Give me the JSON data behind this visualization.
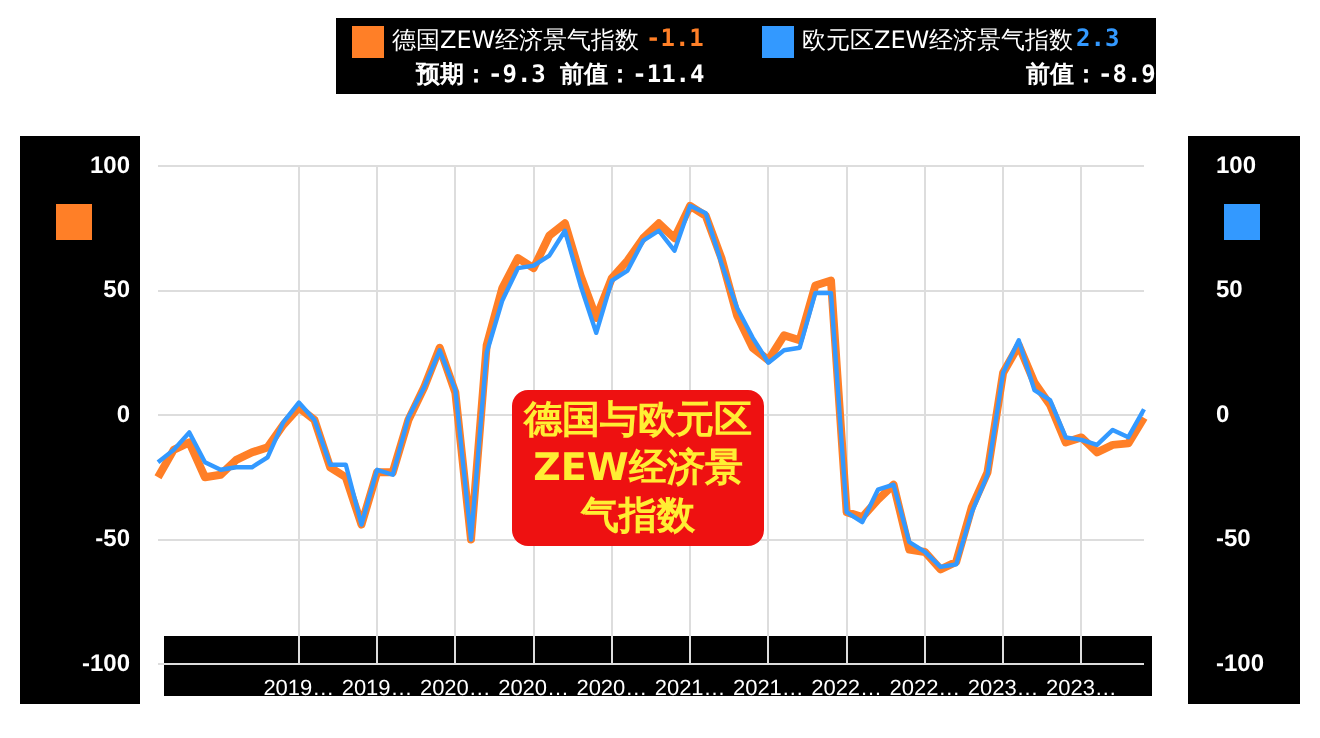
{
  "chart_data": {
    "type": "line",
    "title": "德国与欧元区ZEW经济景气指数",
    "categories": [
      null,
      null,
      null,
      null,
      null,
      null,
      null,
      null,
      null,
      "2019…",
      null,
      null,
      null,
      null,
      "2019…",
      null,
      null,
      null,
      null,
      "2020…",
      null,
      null,
      null,
      null,
      "2020…",
      null,
      null,
      null,
      null,
      "2020…",
      null,
      null,
      null,
      null,
      "2021…",
      null,
      null,
      null,
      null,
      "2021…",
      null,
      null,
      null,
      null,
      "2022…",
      null,
      null,
      null,
      null,
      "2022…",
      null,
      null,
      null,
      null,
      "2023…",
      null,
      null,
      null,
      null,
      "2023…",
      null,
      null,
      null,
      null
    ],
    "series": [
      {
        "name": "德国ZEW经济景气指数",
        "color": "#ff7f27",
        "values": [
          -25,
          -14,
          -11,
          -25,
          -24,
          -18,
          -15,
          -13,
          -4,
          3,
          -2,
          -21,
          -25,
          -44,
          -23,
          -23,
          -2,
          11,
          27,
          9,
          -50,
          28,
          51,
          63,
          59,
          72,
          77,
          56,
          39,
          55,
          62,
          71,
          77,
          71,
          84,
          80,
          63,
          40,
          27,
          22,
          32,
          30,
          52,
          54,
          -39,
          -41,
          -34,
          -28,
          -54,
          -55,
          -62,
          -59,
          -37,
          -23,
          17,
          28,
          13,
          4,
          -11,
          -9,
          -15,
          -12,
          -11.4,
          -1.1
        ]
      },
      {
        "name": "欧元区ZEW经济景气指数",
        "color": "#3399ff",
        "values": [
          -19,
          -14,
          -7,
          -19,
          -22,
          -21,
          -21,
          -17,
          -3,
          5,
          -2,
          -20,
          -20,
          -44,
          -22,
          -24,
          -1,
          11,
          26,
          10,
          -50,
          25,
          46,
          59,
          60,
          64,
          74,
          52,
          33,
          54,
          58,
          70,
          74,
          66,
          84,
          81,
          61,
          43,
          31,
          21,
          26,
          27,
          49,
          49,
          -39,
          -43,
          -30,
          -28,
          -51,
          -55,
          -61,
          -60,
          -39,
          -24,
          17,
          30,
          10,
          6,
          -9,
          -10,
          -12,
          -6,
          -8.9,
          2.3
        ]
      }
    ],
    "ylim": [
      -100,
      100
    ],
    "yticks": [
      -100,
      -50,
      0,
      50,
      100
    ],
    "y2lim": [
      -100,
      100
    ],
    "y2ticks": [
      -100,
      -50,
      0,
      50,
      100
    ],
    "annotations": [
      "-1.1",
      "预期：-9.3",
      "前值：-11.4",
      "2.3",
      "前值：-8.9"
    ],
    "grid": true,
    "legend": "top"
  }
}
